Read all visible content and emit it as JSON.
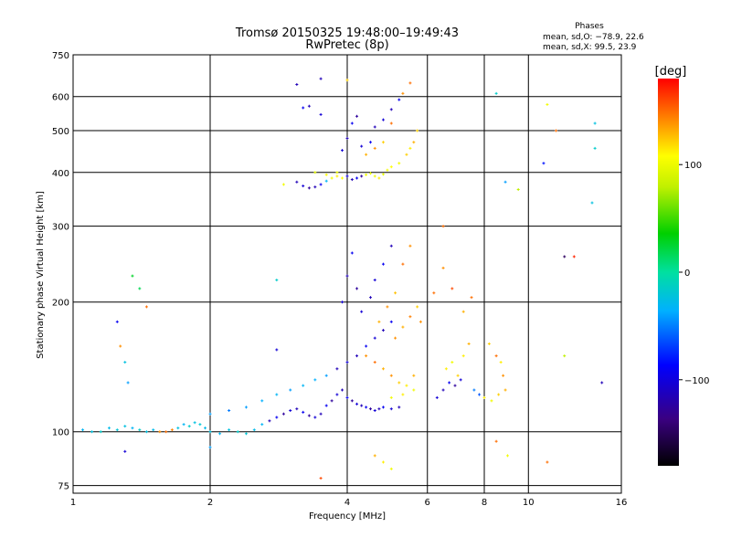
{
  "chart_data": {
    "type": "scatter",
    "title": "Tromsø 20150325 19:48:00–19:49:43",
    "subtitle": "RwPretec (8p)",
    "xlabel": "Frequency [MHz]",
    "ylabel": "Stationary phase Virtual Height [km]",
    "xscale": "log",
    "yscale": "log",
    "xlim": [
      1,
      16
    ],
    "ylim": [
      72,
      750
    ],
    "x_ticks": [
      1,
      2,
      4,
      6,
      8,
      10,
      16
    ],
    "x_tick_labels": [
      "1",
      "2",
      "4",
      "6",
      "8",
      "10",
      "16"
    ],
    "y_ticks": [
      75,
      100,
      200,
      300,
      400,
      500,
      600,
      750
    ],
    "y_tick_labels": [
      "75",
      "100",
      "200",
      "300",
      "400",
      "500",
      "600",
      "750"
    ],
    "grid": true,
    "stats": {
      "heading": "Phases",
      "line1": "mean, sd,O:  −78.9,  22.6",
      "line2": "mean, sd,X:   99.5,  23.9"
    },
    "colorbar": {
      "label": "[deg]",
      "range": [
        -180,
        180
      ],
      "ticks": [
        100,
        0,
        -100
      ],
      "tick_labels": [
        "100",
        "0",
        "−100"
      ],
      "colormap": "rainbow"
    },
    "series": [
      {
        "points": [
          [
            1.05,
            101,
            -40
          ],
          [
            1.1,
            100,
            -30
          ],
          [
            1.15,
            100,
            -20
          ],
          [
            1.2,
            102,
            -35
          ],
          [
            1.25,
            101,
            -25
          ],
          [
            1.3,
            103,
            -30
          ],
          [
            1.35,
            102,
            -40
          ],
          [
            1.4,
            101,
            -20
          ],
          [
            1.45,
            100,
            -30
          ],
          [
            1.5,
            101,
            -35
          ],
          [
            1.55,
            100,
            140
          ],
          [
            1.6,
            100,
            150
          ],
          [
            1.65,
            101,
            145
          ],
          [
            1.7,
            102,
            -30
          ],
          [
            1.75,
            104,
            -40
          ],
          [
            1.8,
            103,
            -20
          ],
          [
            1.85,
            105,
            -30
          ],
          [
            1.9,
            104,
            -25
          ],
          [
            1.95,
            102,
            -35
          ],
          [
            2.0,
            100,
            -30
          ],
          [
            2.1,
            99,
            -40
          ],
          [
            2.2,
            101,
            -30
          ],
          [
            2.3,
            100,
            -20
          ],
          [
            2.4,
            99,
            -25
          ],
          [
            2.5,
            101,
            -35
          ],
          [
            2.6,
            104,
            -40
          ],
          [
            2.7,
            106,
            -120
          ],
          [
            2.8,
            108,
            -100
          ],
          [
            2.9,
            110,
            -130
          ],
          [
            3.0,
            112,
            -110
          ],
          [
            3.1,
            113,
            -120
          ],
          [
            3.2,
            111,
            -100
          ],
          [
            3.3,
            109,
            -130
          ],
          [
            3.4,
            108,
            -110
          ],
          [
            3.5,
            110,
            -120
          ],
          [
            3.6,
            115,
            -100
          ],
          [
            3.7,
            118,
            -130
          ],
          [
            3.8,
            122,
            -110
          ],
          [
            3.9,
            125,
            -120
          ],
          [
            4.0,
            120,
            -100
          ],
          [
            4.1,
            118,
            -130
          ],
          [
            4.2,
            116,
            -110
          ],
          [
            4.3,
            115,
            -120
          ],
          [
            4.4,
            114,
            -100
          ],
          [
            4.5,
            113,
            -130
          ],
          [
            4.6,
            112,
            -110
          ],
          [
            4.7,
            113,
            -120
          ],
          [
            4.8,
            114,
            -100
          ],
          [
            5.0,
            113,
            -110
          ],
          [
            5.2,
            114,
            -120
          ],
          [
            2.0,
            110,
            -50
          ],
          [
            2.2,
            112,
            -60
          ],
          [
            2.4,
            114,
            -50
          ],
          [
            2.6,
            118,
            -45
          ],
          [
            2.8,
            122,
            -40
          ],
          [
            3.0,
            125,
            -50
          ],
          [
            3.2,
            128,
            -40
          ],
          [
            3.4,
            132,
            -45
          ],
          [
            3.6,
            135,
            -50
          ],
          [
            3.8,
            140,
            -120
          ],
          [
            4.0,
            145,
            -110
          ],
          [
            4.2,
            150,
            -120
          ],
          [
            4.4,
            158,
            -100
          ],
          [
            4.6,
            165,
            -110
          ],
          [
            4.8,
            172,
            -120
          ],
          [
            5.0,
            180,
            -100
          ],
          [
            3.9,
            200,
            -110
          ],
          [
            4.0,
            230,
            -120
          ],
          [
            4.1,
            260,
            -100
          ],
          [
            4.2,
            215,
            -130
          ],
          [
            4.3,
            190,
            -110
          ],
          [
            4.5,
            205,
            -120
          ],
          [
            4.6,
            225,
            -110
          ],
          [
            4.8,
            245,
            -100
          ],
          [
            5.0,
            270,
            -120
          ],
          [
            4.4,
            150,
            140
          ],
          [
            4.6,
            145,
            150
          ],
          [
            4.8,
            140,
            130
          ],
          [
            5.0,
            135,
            140
          ],
          [
            5.2,
            130,
            120
          ],
          [
            5.4,
            128,
            110
          ],
          [
            5.6,
            125,
            100
          ],
          [
            5.0,
            120,
            100
          ],
          [
            5.3,
            122,
            110
          ],
          [
            5.6,
            135,
            130
          ],
          [
            4.7,
            180,
            130
          ],
          [
            4.9,
            195,
            140
          ],
          [
            5.1,
            210,
            125
          ],
          [
            5.3,
            245,
            150
          ],
          [
            5.5,
            270,
            140
          ],
          [
            5.1,
            165,
            140
          ],
          [
            5.3,
            175,
            130
          ],
          [
            5.5,
            185,
            145
          ],
          [
            5.7,
            195,
            120
          ],
          [
            5.8,
            180,
            140
          ],
          [
            6.3,
            120,
            -110
          ],
          [
            6.5,
            125,
            -120
          ],
          [
            6.7,
            130,
            -100
          ],
          [
            6.9,
            128,
            -130
          ],
          [
            7.1,
            132,
            -110
          ],
          [
            6.6,
            140,
            110
          ],
          [
            6.8,
            145,
            100
          ],
          [
            7.0,
            135,
            120
          ],
          [
            7.2,
            150,
            110
          ],
          [
            7.4,
            160,
            130
          ],
          [
            7.6,
            125,
            -60
          ],
          [
            7.8,
            122,
            -70
          ],
          [
            8.0,
            120,
            110
          ],
          [
            8.3,
            118,
            100
          ],
          [
            8.6,
            122,
            120
          ],
          [
            8.9,
            125,
            130
          ],
          [
            8.8,
            135,
            140
          ],
          [
            8.5,
            150,
            150
          ],
          [
            8.2,
            160,
            120
          ],
          [
            8.7,
            145,
            110
          ],
          [
            6.2,
            210,
            150
          ],
          [
            6.5,
            240,
            140
          ],
          [
            6.8,
            215,
            160
          ],
          [
            7.2,
            190,
            130
          ],
          [
            7.5,
            205,
            150
          ],
          [
            3.1,
            380,
            -120
          ],
          [
            3.2,
            372,
            -110
          ],
          [
            3.3,
            368,
            -130
          ],
          [
            3.4,
            370,
            -120
          ],
          [
            3.5,
            375,
            -100
          ],
          [
            3.6,
            382,
            -40
          ],
          [
            3.7,
            388,
            100
          ],
          [
            3.8,
            392,
            110
          ],
          [
            3.9,
            388,
            105
          ],
          [
            4.0,
            392,
            -110
          ],
          [
            4.1,
            385,
            -120
          ],
          [
            4.2,
            388,
            -100
          ],
          [
            4.3,
            392,
            -130
          ],
          [
            4.4,
            395,
            100
          ],
          [
            4.5,
            398,
            95
          ],
          [
            4.6,
            392,
            100
          ],
          [
            4.7,
            388,
            110
          ],
          [
            4.8,
            396,
            95
          ],
          [
            4.9,
            405,
            100
          ],
          [
            5.0,
            412,
            105
          ],
          [
            5.2,
            420,
            100
          ],
          [
            5.4,
            440,
            120
          ],
          [
            5.6,
            470,
            130
          ],
          [
            5.7,
            500,
            120
          ],
          [
            5.5,
            455,
            110
          ],
          [
            3.8,
            400,
            100
          ],
          [
            3.6,
            395,
            105
          ],
          [
            3.4,
            400,
            95
          ],
          [
            3.9,
            450,
            -110
          ],
          [
            4.0,
            480,
            -120
          ],
          [
            4.1,
            520,
            -100
          ],
          [
            4.2,
            540,
            -130
          ],
          [
            4.3,
            460,
            -110
          ],
          [
            4.5,
            470,
            -100
          ],
          [
            4.6,
            510,
            -120
          ],
          [
            4.8,
            530,
            -110
          ],
          [
            5.0,
            560,
            -120
          ],
          [
            5.2,
            590,
            -100
          ],
          [
            4.4,
            440,
            130
          ],
          [
            4.6,
            455,
            140
          ],
          [
            4.8,
            470,
            120
          ],
          [
            5.0,
            520,
            150
          ],
          [
            5.3,
            610,
            140
          ],
          [
            3.2,
            565,
            -100
          ],
          [
            3.3,
            570,
            -120
          ],
          [
            3.5,
            545,
            -110
          ],
          [
            5.5,
            645,
            150
          ],
          [
            4.0,
            655,
            120
          ],
          [
            8.5,
            610,
            -20
          ],
          [
            11.0,
            575,
            100
          ],
          [
            11.5,
            500,
            150
          ],
          [
            14.0,
            520,
            -30
          ],
          [
            14.0,
            455,
            -20
          ],
          [
            10.8,
            420,
            -90
          ],
          [
            8.9,
            380,
            -50
          ],
          [
            9.5,
            365,
            80
          ],
          [
            13.8,
            340,
            -30
          ],
          [
            12.0,
            255,
            -150
          ],
          [
            12.6,
            255,
            170
          ],
          [
            14.5,
            130,
            -120
          ],
          [
            12.0,
            150,
            80
          ],
          [
            11.0,
            85,
            150
          ],
          [
            9.0,
            88,
            100
          ],
          [
            8.5,
            95,
            150
          ],
          [
            4.8,
            85,
            110
          ],
          [
            4.6,
            88,
            130
          ],
          [
            5.0,
            82,
            100
          ],
          [
            3.5,
            78,
            160
          ],
          [
            1.35,
            230,
            30
          ],
          [
            1.4,
            215,
            20
          ],
          [
            1.45,
            195,
            150
          ],
          [
            1.25,
            180,
            -100
          ],
          [
            1.27,
            158,
            140
          ],
          [
            1.3,
            145,
            -30
          ],
          [
            1.32,
            130,
            -50
          ],
          [
            1.3,
            90,
            -110
          ],
          [
            2.0,
            92,
            -50
          ],
          [
            3.5,
            660,
            -120
          ],
          [
            3.1,
            640,
            -120
          ],
          [
            2.8,
            225,
            -20
          ],
          [
            2.8,
            155,
            -110
          ],
          [
            2.9,
            375,
            100
          ],
          [
            6.5,
            300,
            150
          ]
        ]
      }
    ]
  }
}
